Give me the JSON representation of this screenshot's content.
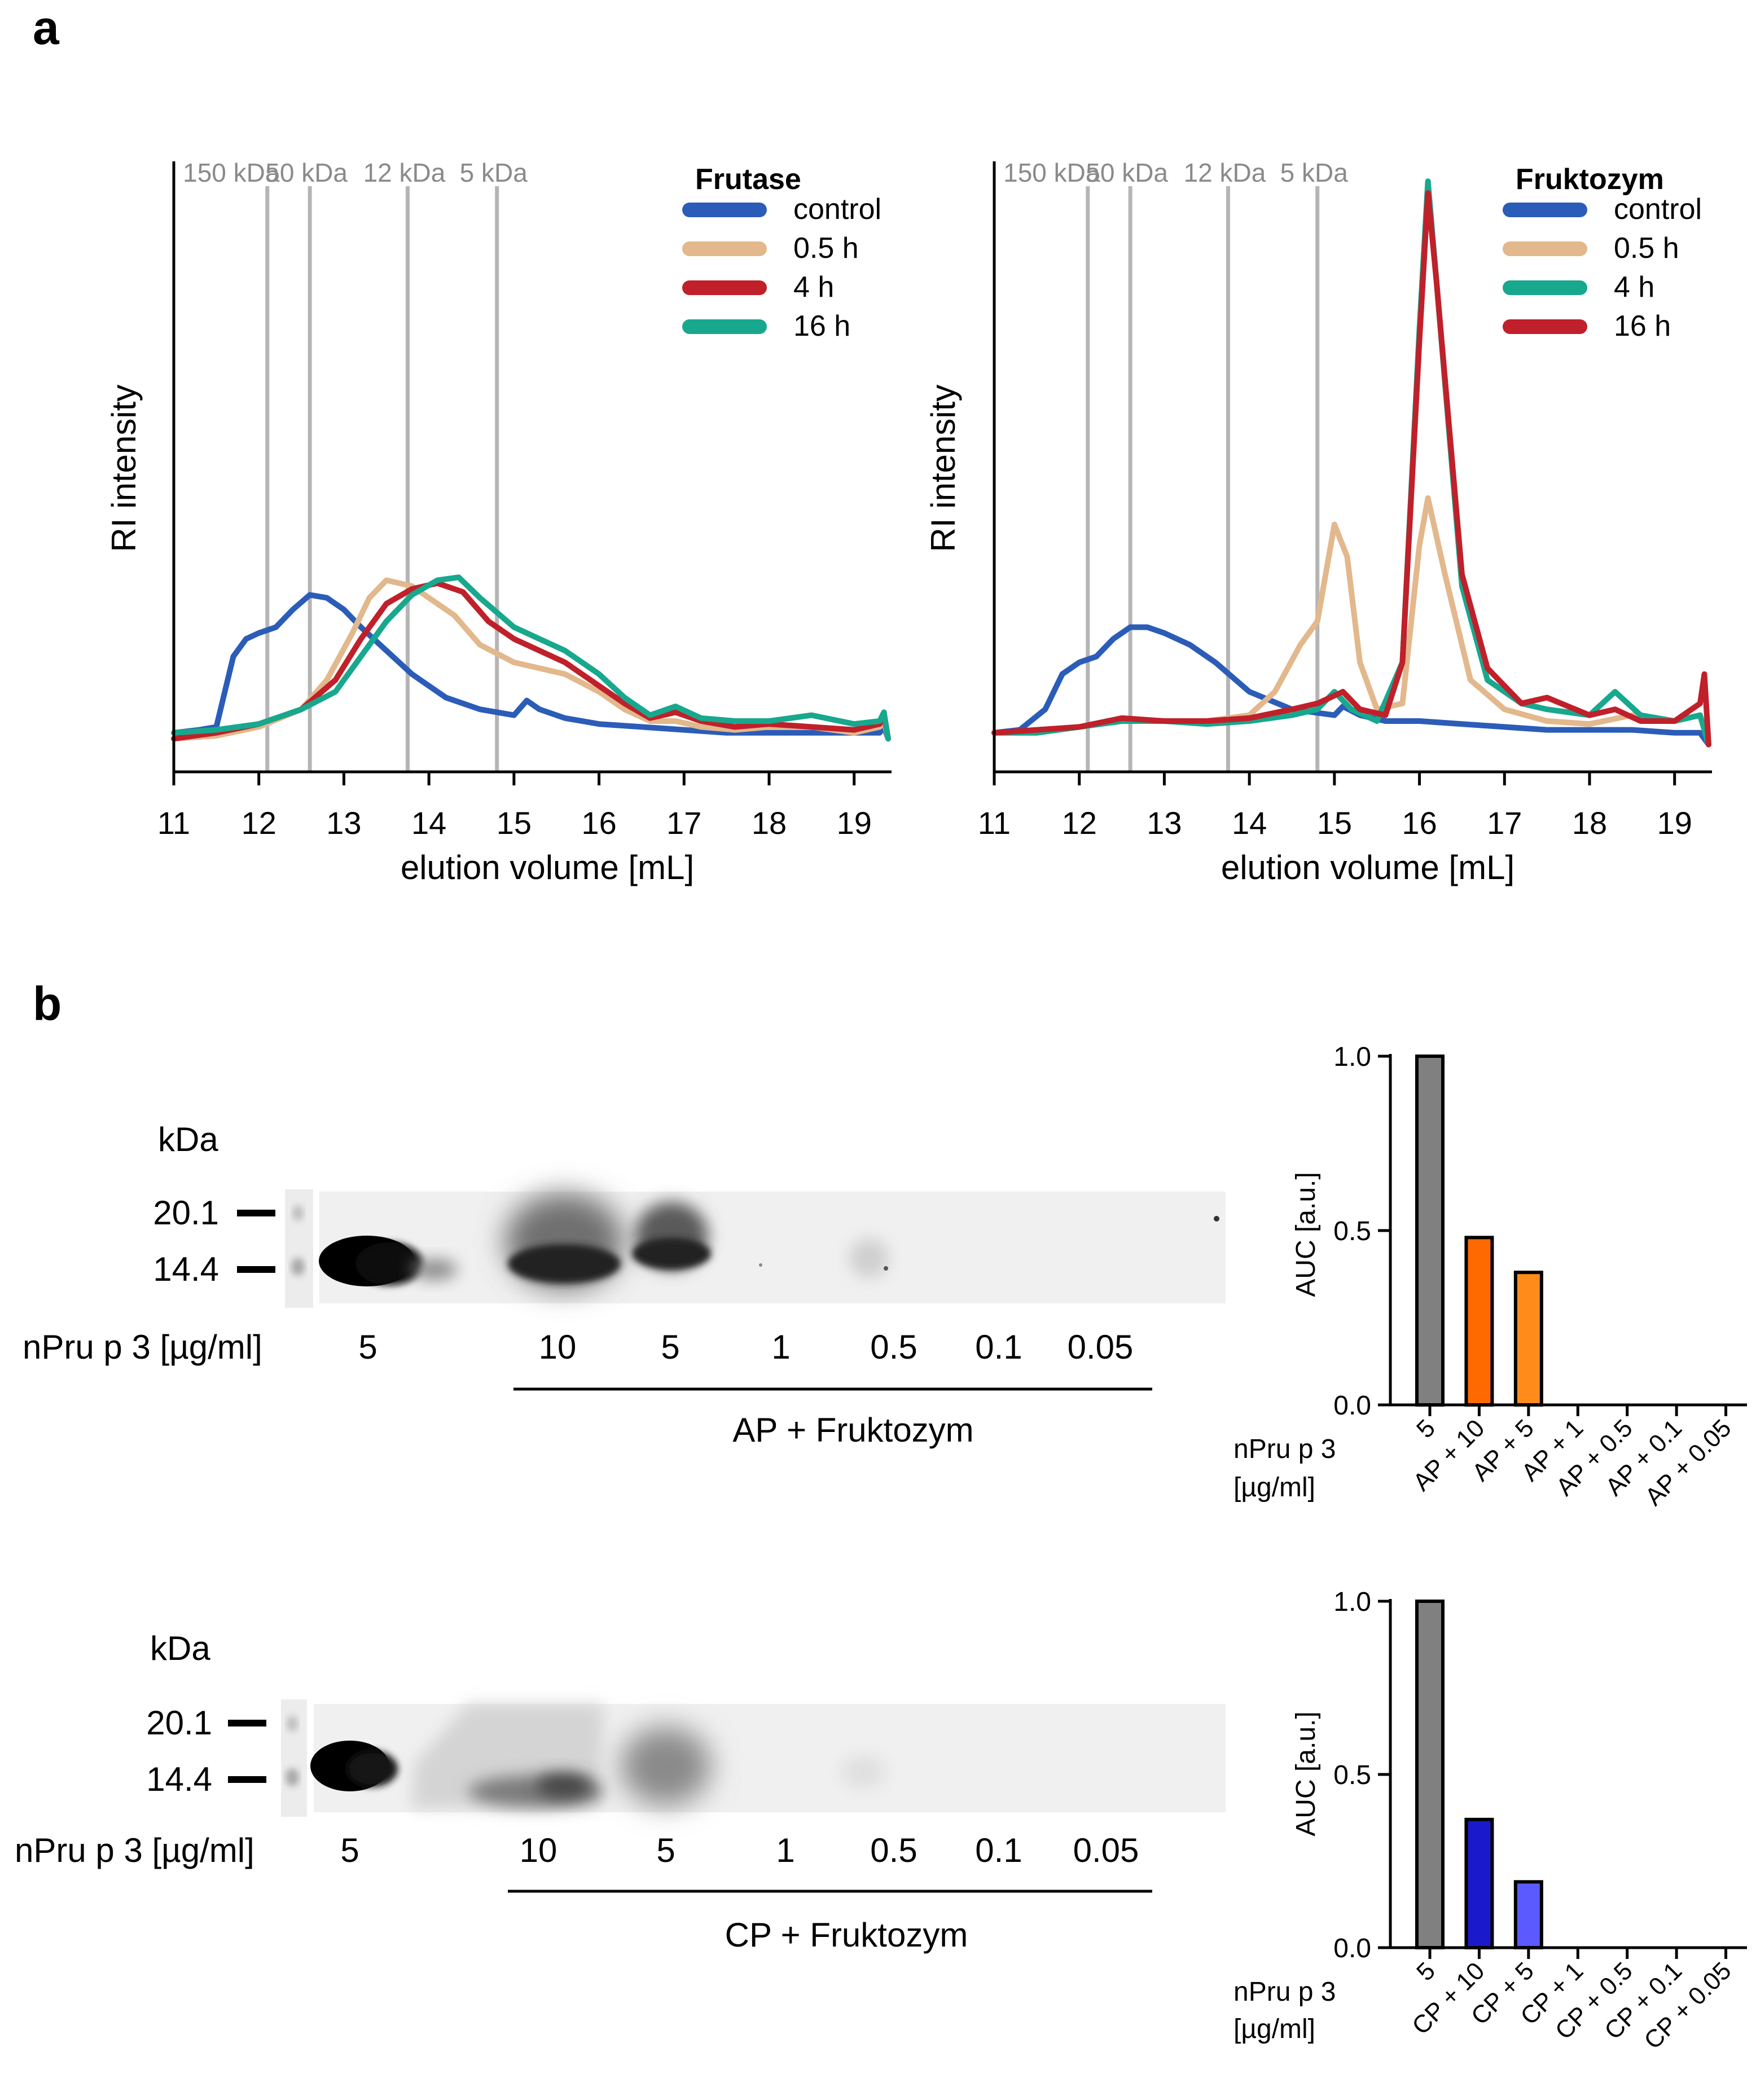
{
  "figure": {
    "panel_a_label": "a",
    "panel_b_label": "b"
  },
  "chart_data": [
    {
      "id": "sec-frutase",
      "type": "line",
      "title": "Frutase",
      "xlabel": "elution volume [mL]",
      "ylabel": "RI intensity",
      "xlim": [
        11,
        19.4
      ],
      "ylim": [
        0,
        1
      ],
      "xticks": [
        "11",
        "12",
        "13",
        "14",
        "15",
        "16",
        "17",
        "18",
        "19"
      ],
      "markers": [
        {
          "label": "150 kDa",
          "x": 12.1
        },
        {
          "label": "50 kDa",
          "x": 12.6
        },
        {
          "label": "12 kDa",
          "x": 13.75
        },
        {
          "label": "5 kDa",
          "x": 14.8
        }
      ],
      "series": [
        {
          "name": "control",
          "color": "#2b5cb8",
          "points": [
            [
              11,
              0.03
            ],
            [
              11.3,
              0.035
            ],
            [
              11.5,
              0.04
            ],
            [
              11.6,
              0.1
            ],
            [
              11.7,
              0.16
            ],
            [
              11.85,
              0.19
            ],
            [
              12,
              0.2
            ],
            [
              12.2,
              0.21
            ],
            [
              12.4,
              0.24
            ],
            [
              12.6,
              0.265
            ],
            [
              12.8,
              0.26
            ],
            [
              13,
              0.24
            ],
            [
              13.2,
              0.21
            ],
            [
              13.5,
              0.17
            ],
            [
              13.8,
              0.13
            ],
            [
              14.2,
              0.09
            ],
            [
              14.6,
              0.07
            ],
            [
              15,
              0.06
            ],
            [
              15.15,
              0.085
            ],
            [
              15.3,
              0.07
            ],
            [
              15.6,
              0.055
            ],
            [
              16,
              0.045
            ],
            [
              16.5,
              0.04
            ],
            [
              17,
              0.035
            ],
            [
              17.5,
              0.03
            ],
            [
              18,
              0.03
            ],
            [
              18.5,
              0.03
            ],
            [
              19,
              0.03
            ],
            [
              19.3,
              0.03
            ],
            [
              19.35,
              0.04
            ],
            [
              19.4,
              0.02
            ]
          ]
        },
        {
          "name": "0.5 h",
          "color": "#e2b88c",
          "points": [
            [
              11,
              0.02
            ],
            [
              11.5,
              0.025
            ],
            [
              12,
              0.04
            ],
            [
              12.5,
              0.07
            ],
            [
              12.8,
              0.12
            ],
            [
              13.1,
              0.2
            ],
            [
              13.3,
              0.26
            ],
            [
              13.5,
              0.29
            ],
            [
              13.8,
              0.28
            ],
            [
              14,
              0.26
            ],
            [
              14.3,
              0.23
            ],
            [
              14.6,
              0.18
            ],
            [
              15,
              0.15
            ],
            [
              15.3,
              0.14
            ],
            [
              15.6,
              0.13
            ],
            [
              16,
              0.1
            ],
            [
              16.3,
              0.07
            ],
            [
              16.6,
              0.05
            ],
            [
              16.9,
              0.05
            ],
            [
              17.2,
              0.04
            ],
            [
              17.6,
              0.035
            ],
            [
              18,
              0.04
            ],
            [
              18.5,
              0.04
            ],
            [
              19,
              0.03
            ],
            [
              19.3,
              0.04
            ],
            [
              19.35,
              0.05
            ],
            [
              19.4,
              0.02
            ]
          ]
        },
        {
          "name": "4 h",
          "color": "#c0202a",
          "points": [
            [
              11,
              0.02
            ],
            [
              11.5,
              0.03
            ],
            [
              12,
              0.045
            ],
            [
              12.5,
              0.07
            ],
            [
              12.9,
              0.12
            ],
            [
              13.2,
              0.19
            ],
            [
              13.5,
              0.25
            ],
            [
              13.8,
              0.275
            ],
            [
              14.1,
              0.285
            ],
            [
              14.4,
              0.27
            ],
            [
              14.7,
              0.22
            ],
            [
              15,
              0.19
            ],
            [
              15.3,
              0.17
            ],
            [
              15.6,
              0.15
            ],
            [
              16,
              0.11
            ],
            [
              16.3,
              0.08
            ],
            [
              16.6,
              0.055
            ],
            [
              16.9,
              0.065
            ],
            [
              17.2,
              0.05
            ],
            [
              17.6,
              0.04
            ],
            [
              18,
              0.045
            ],
            [
              18.5,
              0.04
            ],
            [
              19,
              0.035
            ],
            [
              19.3,
              0.045
            ],
            [
              19.35,
              0.06
            ],
            [
              19.4,
              0.02
            ]
          ]
        },
        {
          "name": "16 h",
          "color": "#17a88d",
          "points": [
            [
              11,
              0.03
            ],
            [
              11.5,
              0.035
            ],
            [
              12,
              0.045
            ],
            [
              12.5,
              0.07
            ],
            [
              12.9,
              0.1
            ],
            [
              13.2,
              0.16
            ],
            [
              13.5,
              0.22
            ],
            [
              13.8,
              0.265
            ],
            [
              14.1,
              0.29
            ],
            [
              14.35,
              0.295
            ],
            [
              14.6,
              0.26
            ],
            [
              15,
              0.21
            ],
            [
              15.3,
              0.19
            ],
            [
              15.6,
              0.17
            ],
            [
              16,
              0.13
            ],
            [
              16.3,
              0.09
            ],
            [
              16.6,
              0.06
            ],
            [
              16.9,
              0.075
            ],
            [
              17.2,
              0.055
            ],
            [
              17.6,
              0.05
            ],
            [
              18,
              0.05
            ],
            [
              18.5,
              0.06
            ],
            [
              19,
              0.045
            ],
            [
              19.3,
              0.05
            ],
            [
              19.35,
              0.065
            ],
            [
              19.4,
              0.02
            ]
          ]
        }
      ]
    },
    {
      "id": "sec-fruktozym",
      "type": "line",
      "title": "Fruktozym",
      "xlabel": "elution volume [mL]",
      "ylabel": "RI intensity",
      "xlim": [
        11,
        19.4
      ],
      "ylim": [
        0,
        1
      ],
      "xticks": [
        "11",
        "12",
        "13",
        "14",
        "15",
        "16",
        "17",
        "18",
        "19"
      ],
      "markers": [
        {
          "label": "150 kDa",
          "x": 12.1
        },
        {
          "label": "50 kDa",
          "x": 12.6
        },
        {
          "label": "12 kDa",
          "x": 13.75
        },
        {
          "label": "5 kDa",
          "x": 14.8
        }
      ],
      "series": [
        {
          "name": "control",
          "color": "#2b5cb8",
          "points": [
            [
              11,
              0.03
            ],
            [
              11.3,
              0.035
            ],
            [
              11.6,
              0.07
            ],
            [
              11.8,
              0.13
            ],
            [
              12,
              0.15
            ],
            [
              12.2,
              0.16
            ],
            [
              12.4,
              0.19
            ],
            [
              12.6,
              0.21
            ],
            [
              12.8,
              0.21
            ],
            [
              13,
              0.2
            ],
            [
              13.3,
              0.18
            ],
            [
              13.6,
              0.15
            ],
            [
              14,
              0.1
            ],
            [
              14.5,
              0.07
            ],
            [
              15,
              0.06
            ],
            [
              15.1,
              0.075
            ],
            [
              15.3,
              0.06
            ],
            [
              15.6,
              0.05
            ],
            [
              16,
              0.05
            ],
            [
              16.5,
              0.045
            ],
            [
              17,
              0.04
            ],
            [
              17.5,
              0.035
            ],
            [
              18,
              0.035
            ],
            [
              18.5,
              0.035
            ],
            [
              19,
              0.03
            ],
            [
              19.3,
              0.03
            ],
            [
              19.4,
              0.01
            ]
          ]
        },
        {
          "name": "0.5 h",
          "color": "#e2b88c",
          "points": [
            [
              11,
              0.03
            ],
            [
              11.5,
              0.03
            ],
            [
              12,
              0.04
            ],
            [
              12.5,
              0.05
            ],
            [
              13,
              0.05
            ],
            [
              13.5,
              0.05
            ],
            [
              14,
              0.06
            ],
            [
              14.3,
              0.1
            ],
            [
              14.6,
              0.18
            ],
            [
              14.8,
              0.22
            ],
            [
              15,
              0.385
            ],
            [
              15.15,
              0.33
            ],
            [
              15.3,
              0.15
            ],
            [
              15.5,
              0.07
            ],
            [
              15.8,
              0.08
            ],
            [
              16,
              0.35
            ],
            [
              16.1,
              0.43
            ],
            [
              16.3,
              0.3
            ],
            [
              16.6,
              0.12
            ],
            [
              17,
              0.07
            ],
            [
              17.5,
              0.05
            ],
            [
              18,
              0.045
            ],
            [
              18.5,
              0.06
            ],
            [
              19,
              0.05
            ],
            [
              19.3,
              0.06
            ],
            [
              19.4,
              0.01
            ]
          ]
        },
        {
          "name": "4 h",
          "color": "#17a88d",
          "points": [
            [
              11,
              0.03
            ],
            [
              11.5,
              0.03
            ],
            [
              12,
              0.04
            ],
            [
              12.5,
              0.05
            ],
            [
              13,
              0.05
            ],
            [
              13.5,
              0.045
            ],
            [
              14,
              0.05
            ],
            [
              14.5,
              0.06
            ],
            [
              14.8,
              0.07
            ],
            [
              15,
              0.1
            ],
            [
              15.2,
              0.07
            ],
            [
              15.5,
              0.05
            ],
            [
              15.8,
              0.15
            ],
            [
              16,
              0.72
            ],
            [
              16.1,
              0.97
            ],
            [
              16.2,
              0.8
            ],
            [
              16.5,
              0.28
            ],
            [
              16.8,
              0.12
            ],
            [
              17.2,
              0.08
            ],
            [
              17.5,
              0.07
            ],
            [
              18,
              0.06
            ],
            [
              18.3,
              0.1
            ],
            [
              18.6,
              0.06
            ],
            [
              19,
              0.05
            ],
            [
              19.3,
              0.06
            ],
            [
              19.4,
              0.01
            ]
          ]
        },
        {
          "name": "16 h",
          "color": "#c0202a",
          "points": [
            [
              11,
              0.03
            ],
            [
              11.5,
              0.035
            ],
            [
              12,
              0.04
            ],
            [
              12.5,
              0.055
            ],
            [
              13,
              0.05
            ],
            [
              13.5,
              0.05
            ],
            [
              14,
              0.055
            ],
            [
              14.5,
              0.07
            ],
            [
              14.8,
              0.08
            ],
            [
              15.1,
              0.1
            ],
            [
              15.3,
              0.07
            ],
            [
              15.6,
              0.06
            ],
            [
              15.8,
              0.15
            ],
            [
              16,
              0.7
            ],
            [
              16.1,
              0.95
            ],
            [
              16.2,
              0.8
            ],
            [
              16.5,
              0.3
            ],
            [
              16.8,
              0.14
            ],
            [
              17.2,
              0.08
            ],
            [
              17.5,
              0.09
            ],
            [
              18,
              0.06
            ],
            [
              18.3,
              0.07
            ],
            [
              18.6,
              0.05
            ],
            [
              19,
              0.05
            ],
            [
              19.3,
              0.08
            ],
            [
              19.35,
              0.13
            ],
            [
              19.4,
              0.01
            ]
          ]
        }
      ]
    },
    {
      "id": "auc-ap",
      "type": "bar",
      "ylabel": "AUC [a.u.]",
      "ylim": [
        0,
        1
      ],
      "yticks": [
        "0.0",
        "0.5",
        "1.0"
      ],
      "xlabel_lines": [
        "nPru p 3",
        "[µg/ml]"
      ],
      "categories": [
        "5",
        "AP + 10",
        "AP + 5",
        "AP + 1",
        "AP + 0.5",
        "AP + 0.1",
        "AP + 0.05"
      ],
      "values": [
        1.0,
        0.48,
        0.38,
        0,
        0,
        0,
        0
      ],
      "colors": [
        "#808080",
        "#ff6a00",
        "#ff8c1a",
        "#ff8c1a",
        "#ff8c1a",
        "#ff8c1a",
        "#ff8c1a"
      ]
    },
    {
      "id": "auc-cp",
      "type": "bar",
      "ylabel": "AUC [a.u.]",
      "ylim": [
        0,
        1
      ],
      "yticks": [
        "0.0",
        "0.5",
        "1.0"
      ],
      "xlabel_lines": [
        "nPru p 3",
        "[µg/ml]"
      ],
      "categories": [
        "5",
        "CP + 10",
        "CP + 5",
        "CP + 1",
        "CP + 0.5",
        "CP + 0.1",
        "CP + 0.05"
      ],
      "values": [
        1.0,
        0.37,
        0.19,
        0,
        0,
        0,
        0
      ],
      "colors": [
        "#808080",
        "#1a1acc",
        "#5a5aff",
        "#5a5aff",
        "#5a5aff",
        "#5a5aff",
        "#5a5aff"
      ]
    }
  ],
  "gels": [
    {
      "id": "gel-ap",
      "unit_label": "kDa",
      "ladder": [
        "20.1",
        "14.4"
      ],
      "row_label": "nPru p 3 [µg/ml]",
      "lanes": [
        "5",
        "10",
        "5",
        "1",
        "0.5",
        "0.1",
        "0.05"
      ],
      "group_label": "AP + Fruktozym"
    },
    {
      "id": "gel-cp",
      "unit_label": "kDa",
      "ladder": [
        "20.1",
        "14.4"
      ],
      "row_label": "nPru p 3 [µg/ml]",
      "lanes": [
        "5",
        "10",
        "5",
        "1",
        "0.5",
        "0.1",
        "0.05"
      ],
      "group_label": "CP + Fruktozym"
    }
  ]
}
